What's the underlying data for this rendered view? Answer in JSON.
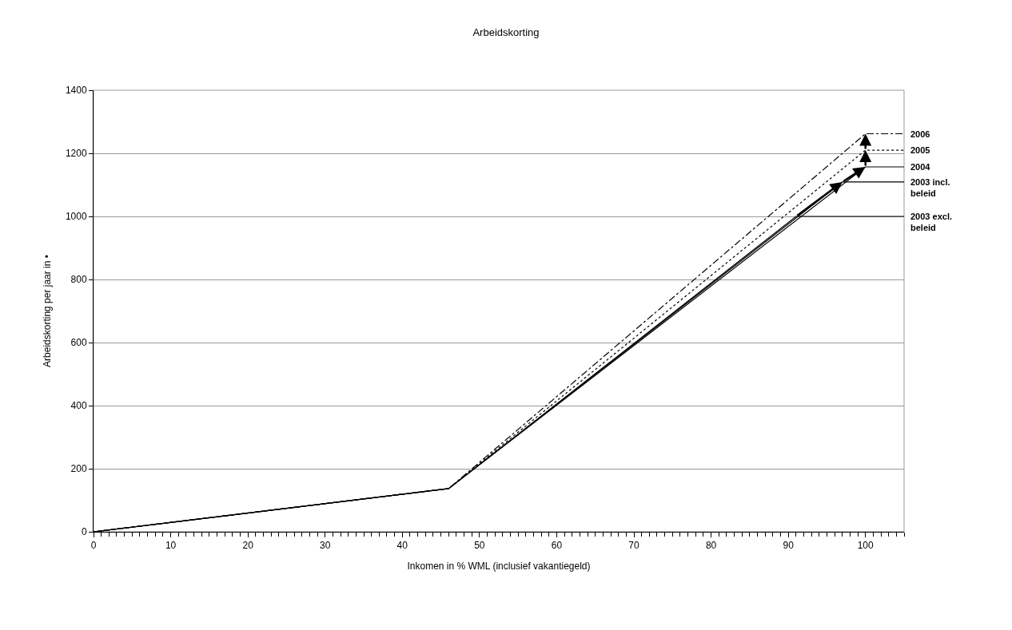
{
  "chart_data": {
    "type": "line",
    "title": "Arbeidskorting",
    "xlabel": "Inkomen in % WML (inclusief vakantiegeld)",
    "ylabel": "Arbeidskorting per jaar in •",
    "xlim": [
      0,
      105
    ],
    "xticks": [
      0,
      10,
      20,
      30,
      40,
      50,
      60,
      70,
      80,
      90,
      100
    ],
    "ylim": [
      0,
      1400
    ],
    "yticks": [
      0,
      200,
      400,
      600,
      800,
      1000,
      1200,
      1400
    ],
    "grid": "y",
    "legend": false,
    "marker": "none",
    "series": [
      {
        "name": "2003 excl. beleid",
        "color": "#000000",
        "line_style": "solid",
        "x": [
          0,
          46,
          91,
          105
        ],
        "values": [
          0,
          137,
          1000,
          1000
        ]
      },
      {
        "name": "2003 incl. beleid",
        "color": "#000000",
        "line_style": "solid",
        "x": [
          0,
          46,
          97,
          105
        ],
        "values": [
          0,
          137,
          1109,
          1109
        ]
      },
      {
        "name": "2004",
        "color": "#000000",
        "line_style": "solid",
        "x": [
          0,
          46,
          100,
          105
        ],
        "values": [
          0,
          137,
          1157,
          1157
        ]
      },
      {
        "name": "2005",
        "color": "#000000",
        "line_style": "dotted",
        "x": [
          0,
          46,
          100,
          105
        ],
        "values": [
          0,
          137,
          1210,
          1210
        ]
      },
      {
        "name": "2006",
        "color": "#000000",
        "line_style": "dashdot",
        "x": [
          0,
          46,
          100,
          105
        ],
        "values": [
          0,
          137,
          1262,
          1262
        ]
      }
    ]
  }
}
